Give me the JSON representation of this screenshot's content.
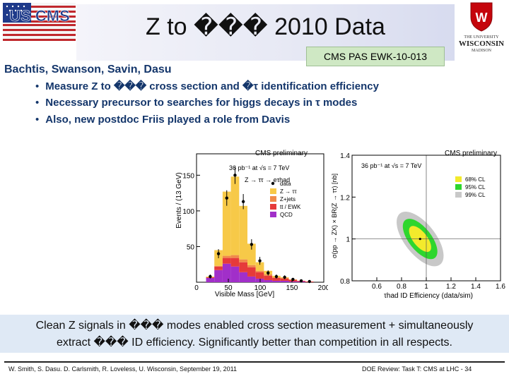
{
  "header": {
    "title": "Z to ��� 2010 Data",
    "pas_number": "CMS PAS EWK-10-013",
    "right_logo": {
      "line1": "THE UNIVERSITY",
      "line2": "WISCONSIN",
      "line3": "MADISON"
    },
    "left_logo": "US CMS"
  },
  "authors": "Bachtis, Swanson, Savin, Dasu",
  "bullets": [
    "Measure Z to ��� cross section and �τ identification efficiency",
    "Necessary precursor to searches for higgs decays in τ modes",
    "Also, new postdoc Friis played a role from Davis"
  ],
  "summary": {
    "line1": "Clean Z signals in ��� modes enabled cross section measurement + simultaneously",
    "line2": "extract ��� ID efficiency. Significantly better than competition in all respects."
  },
  "footer": {
    "left": "W. Smith, S. Dasu. D. Carlsmith, R. Loveless, U. Wisconsin, September 19, 2011",
    "right": "DOE Review: Task T: CMS at LHC - 34"
  },
  "chart_data": [
    {
      "type": "bar",
      "title": "CMS preliminary",
      "annotations": [
        "36 pb⁻¹ at √s = 7 TeV",
        "Z → ττ → eτhad"
      ],
      "xlabel": "Visible Mass [GeV]",
      "ylabel": "Events / (13 GeV)",
      "xlim": [
        0,
        200
      ],
      "ylim": [
        0,
        180
      ],
      "x_ticks": [
        "0",
        "50",
        "100",
        "150",
        "200"
      ],
      "y_ticks": [
        "50",
        "100",
        "150"
      ],
      "legend_placement": "top-right",
      "bin_width": 13,
      "bin_edges": [
        15,
        28,
        41,
        54,
        67,
        80,
        93,
        106,
        119,
        132,
        145,
        158,
        171,
        184,
        197
      ],
      "series": [
        {
          "name": "QCD",
          "values": [
            6,
            17,
            26,
            22,
            14,
            8,
            5,
            3,
            2,
            2,
            1,
            1,
            0,
            0
          ]
        },
        {
          "name": "tt / EWK",
          "values": [
            1,
            5,
            8,
            12,
            14,
            13,
            9,
            6,
            4,
            3,
            2,
            1,
            1,
            0
          ]
        },
        {
          "name": "Z+jets",
          "values": [
            0,
            1,
            3,
            4,
            4,
            3,
            2,
            2,
            1,
            1,
            1,
            0,
            0,
            0
          ]
        },
        {
          "name": "Z → ττ",
          "values": [
            1,
            22,
            90,
            110,
            75,
            30,
            12,
            5,
            2,
            1,
            0,
            0,
            0,
            0
          ]
        }
      ],
      "data_points": [
        8,
        40,
        118,
        150,
        113,
        53,
        30,
        13,
        8,
        7,
        4,
        2,
        1,
        0
      ],
      "data_label": "data",
      "colors": {
        "QCD": "#a12fc9",
        "tt / EWK": "#e63a3a",
        "Z+jets": "#f08a4a",
        "Z → ττ": "#f7c948"
      }
    },
    {
      "type": "scatter",
      "title": "CMS preliminary",
      "annotation": "36 pb⁻¹ at √s = 7 TeV",
      "xlabel": "τhad ID Efficiency (data/sim)",
      "ylabel": "σ(pp → ZX) × BR(Z → ττ) [nb]",
      "xlim": [
        0.4,
        1.6
      ],
      "ylim": [
        0.8,
        1.4
      ],
      "x_ticks": [
        "0.6",
        "0.8",
        "1",
        "1.2",
        "1.4",
        "1.6"
      ],
      "y_ticks": [
        "1.4",
        "1.2",
        "1",
        "0.8"
      ],
      "legend": [
        "68% CL",
        "95% CL",
        "99% CL"
      ],
      "legend_placement": "top-right",
      "best_fit": {
        "x": 0.95,
        "y": 1.0
      },
      "reference": {
        "x": 1.0,
        "y": 1.0
      },
      "colors": {
        "68% CL": "#f3ea2c",
        "95% CL": "#2ed62e",
        "99% CL": "#c8c8c8"
      }
    }
  ]
}
